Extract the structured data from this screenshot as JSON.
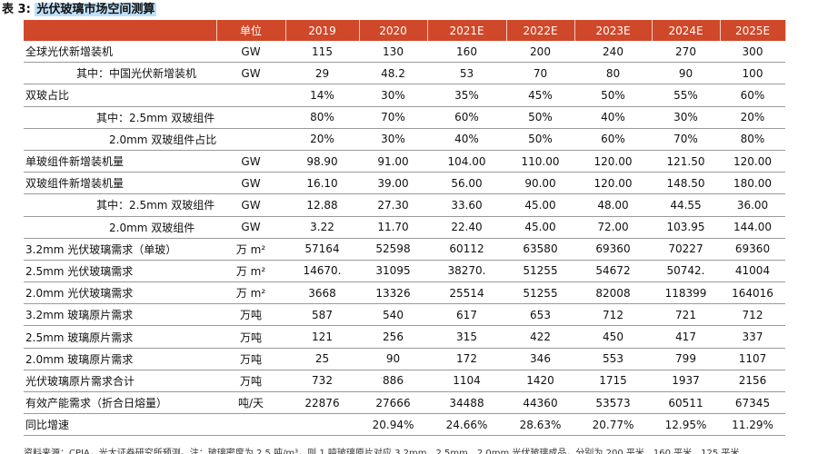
{
  "title": {
    "prefix": "表 3:",
    "highlight": "光伏玻璃市场空间测算"
  },
  "table": {
    "headers": [
      "",
      "单位",
      "2019",
      "2020",
      "2021E",
      "2022E",
      "2023E",
      "2024E",
      "2025E"
    ],
    "rows": [
      {
        "label": "全球光伏新增装机",
        "indent": 0,
        "unit": "GW",
        "values": [
          "115",
          "130",
          "160",
          "200",
          "240",
          "270",
          "300"
        ]
      },
      {
        "label": "其中：中国光伏新增装机",
        "indent": 1,
        "unit": "GW",
        "values": [
          "29",
          "48.2",
          "53",
          "70",
          "80",
          "90",
          "100"
        ]
      },
      {
        "label": "双玻占比",
        "indent": 0,
        "unit": "",
        "values": [
          "14%",
          "30%",
          "35%",
          "45%",
          "50%",
          "55%",
          "60%"
        ]
      },
      {
        "label": "其中：2.5mm 双玻组件占比",
        "indent": 3,
        "unit": "",
        "values": [
          "80%",
          "70%",
          "60%",
          "50%",
          "40%",
          "30%",
          "20%"
        ]
      },
      {
        "label": "2.0mm 双玻组件占比",
        "indent": 4,
        "unit": "",
        "values": [
          "20%",
          "30%",
          "40%",
          "50%",
          "60%",
          "70%",
          "80%"
        ]
      },
      {
        "label": "单玻组件新增装机量",
        "indent": 0,
        "unit": "GW",
        "values": [
          "98.90",
          "91.00",
          "104.00",
          "110.00",
          "120.00",
          "121.50",
          "120.00"
        ]
      },
      {
        "label": "双玻组件新增装机量",
        "indent": 0,
        "unit": "GW",
        "values": [
          "16.10",
          "39.00",
          "56.00",
          "90.00",
          "120.00",
          "148.50",
          "180.00"
        ]
      },
      {
        "label": "其中：2.5mm 双玻组件",
        "indent": 3,
        "unit": "GW",
        "values": [
          "12.88",
          "27.30",
          "33.60",
          "45.00",
          "48.00",
          "44.55",
          "36.00"
        ]
      },
      {
        "label": "2.0mm 双玻组件",
        "indent": 4,
        "unit": "GW",
        "values": [
          "3.22",
          "11.70",
          "22.40",
          "45.00",
          "72.00",
          "103.95",
          "144.00"
        ]
      },
      {
        "label": "3.2mm 光伏玻璃需求（单玻）",
        "indent": 0,
        "unit": "万 m²",
        "values": [
          "57164",
          "52598",
          "60112",
          "63580",
          "69360",
          "70227",
          "69360"
        ]
      },
      {
        "label": "2.5mm 光伏玻璃需求",
        "indent": 0,
        "unit": "万 m²",
        "values": [
          "14670.",
          "31095",
          "38270.",
          "51255",
          "54672",
          "50742.",
          "41004"
        ]
      },
      {
        "label": "2.0mm 光伏玻璃需求",
        "indent": 0,
        "unit": "万 m²",
        "values": [
          "3668",
          "13326",
          "25514",
          "51255",
          "82008",
          "118399",
          "164016"
        ]
      },
      {
        "label": "3.2mm 玻璃原片需求",
        "indent": 0,
        "unit": "万吨",
        "values": [
          "587",
          "540",
          "617",
          "653",
          "712",
          "721",
          "712"
        ]
      },
      {
        "label": "2.5mm 玻璃原片需求",
        "indent": 0,
        "unit": "万吨",
        "values": [
          "121",
          "256",
          "315",
          "422",
          "450",
          "417",
          "337"
        ]
      },
      {
        "label": "2.0mm 玻璃原片需求",
        "indent": 0,
        "unit": "万吨",
        "values": [
          "25",
          "90",
          "172",
          "346",
          "553",
          "799",
          "1107"
        ]
      },
      {
        "label": "光伏玻璃原片需求合计",
        "indent": 0,
        "unit": "万吨",
        "values": [
          "732",
          "886",
          "1104",
          "1420",
          "1715",
          "1937",
          "2156"
        ]
      },
      {
        "label": "有效产能需求（折合日熔量）",
        "indent": 0,
        "unit": "吨/天",
        "values": [
          "22876",
          "27666",
          "34488",
          "44360",
          "53573",
          "60511",
          "67345"
        ]
      },
      {
        "label": "同比增速",
        "indent": 0,
        "unit": "",
        "values": [
          "",
          "20.94%",
          "24.66%",
          "28.63%",
          "20.77%",
          "12.95%",
          "11.29%"
        ]
      }
    ]
  },
  "source_note": "资料来源：CPIA，光大证券研究所预测。注：玻璃密度为 2.5 吨/m³，则 1 吨玻璃原片对应 3.2mm、2.5mm、2.0mm 光伏玻璃成品，分别为 200 平米、160 平米、125 平米"
}
